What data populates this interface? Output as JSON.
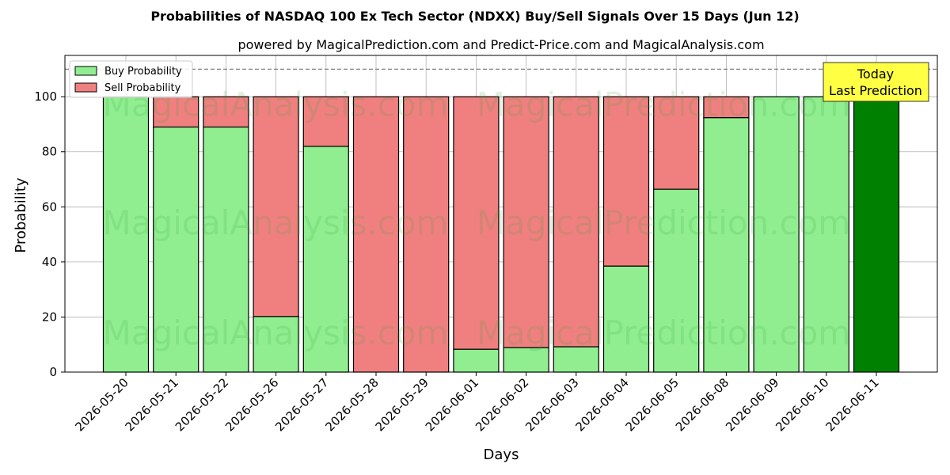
{
  "chart_data": {
    "type": "bar",
    "stacked": true,
    "title": "Probabilities of NASDAQ 100 Ex Tech Sector (NDXX) Buy/Sell Signals Over 15 Days (Jun 12)",
    "subtitle": "powered by MagicalPrediction.com and Predict-Price.com and MagicalAnalysis.com",
    "xlabel": "Days",
    "ylabel": "Probability",
    "ylim": [
      0,
      115
    ],
    "yticks": [
      0,
      20,
      40,
      60,
      80,
      100
    ],
    "grid": true,
    "reference_line": 110,
    "legend_position": "top-left",
    "categories": [
      "2026-05-20",
      "2026-05-21",
      "2026-05-22",
      "2026-05-26",
      "2026-05-27",
      "2026-05-28",
      "2026-05-29",
      "2026-06-01",
      "2026-06-02",
      "2026-06-03",
      "2026-06-04",
      "2026-06-05",
      "2026-06-08",
      "2026-06-09",
      "2026-06-10",
      "2026-06-11"
    ],
    "series": [
      {
        "name": "Buy Probability",
        "color": "#90ee90",
        "values": [
          100,
          89,
          89,
          20.2,
          82,
          0,
          0,
          8.3,
          8.9,
          9.2,
          38.5,
          66.4,
          92.4,
          100,
          100,
          100
        ]
      },
      {
        "name": "Sell Probability",
        "color": "#f08080",
        "values": [
          0,
          11,
          11,
          79.8,
          18,
          100,
          100,
          91.7,
          91.1,
          90.8,
          61.5,
          33.6,
          7.6,
          0,
          0,
          0
        ]
      }
    ],
    "highlight": {
      "index": 15,
      "color": "#008000"
    },
    "annotation": {
      "lines": [
        "Today",
        "Last Prediction"
      ],
      "background": "#ffff44"
    },
    "watermarks": [
      "MagicalAnalysis.com",
      "MagicalPrediction.com"
    ]
  }
}
